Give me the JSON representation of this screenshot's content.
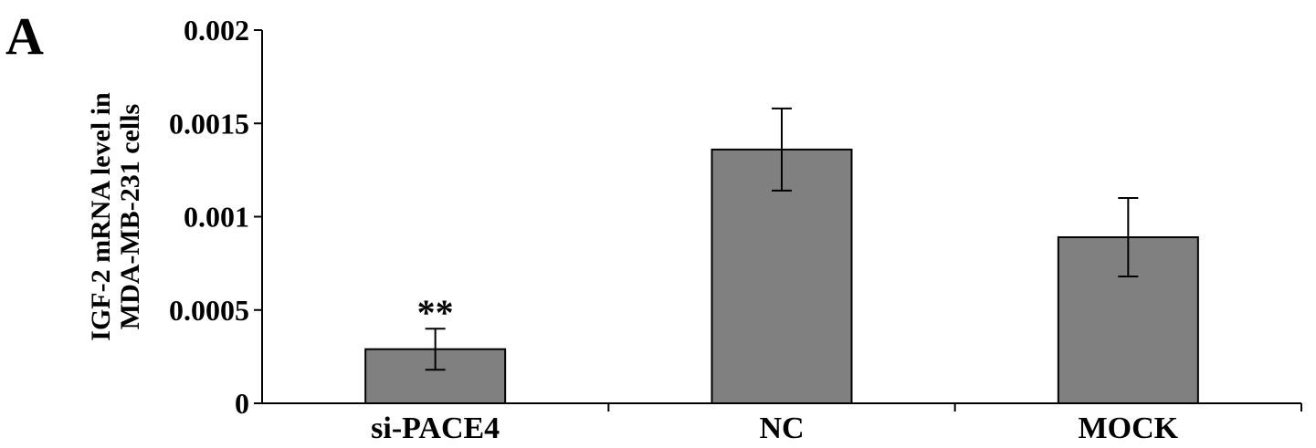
{
  "panel_label": "A",
  "chart_data": {
    "type": "bar",
    "title": "",
    "xlabel": "",
    "ylabel": [
      "IGF-2 mRNA level in",
      "MDA-MB-231 cells"
    ],
    "ylim": [
      0,
      0.002
    ],
    "yticks": [
      "0",
      "0.0005",
      "0.001",
      "0.0015",
      "0.002"
    ],
    "categories": [
      "si-PACE4",
      "NC",
      "MOCK"
    ],
    "values": [
      0.00029,
      0.00136,
      0.00089
    ],
    "errors": [
      0.00011,
      0.00022,
      0.00021
    ],
    "annotations": [
      "**",
      "",
      ""
    ],
    "bar_color": "#808080",
    "grid": false,
    "legend": "none"
  }
}
